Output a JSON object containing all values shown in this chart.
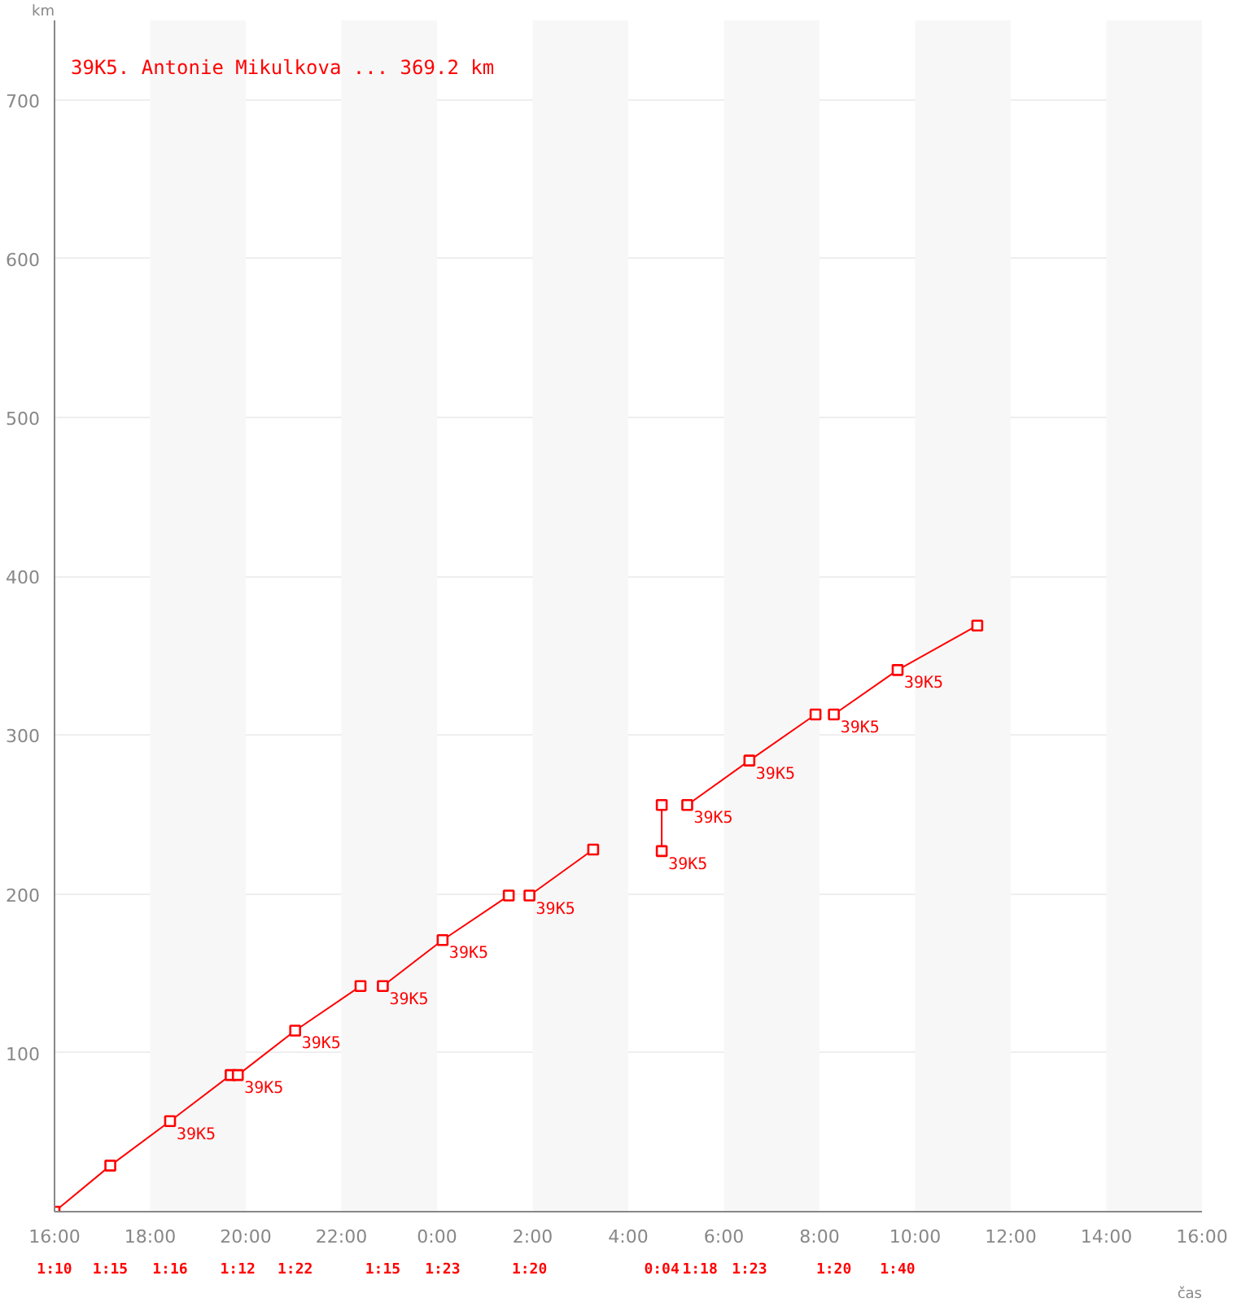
{
  "chart_data": {
    "type": "line",
    "xlabel": "čas",
    "ylabel": "km",
    "xlim": [
      "2000-01-01T16:00",
      "2000-01-02T16:00"
    ],
    "ylim": [
      0,
      750
    ],
    "xticks": [
      {
        "value": "2000-01-01T16:00",
        "label": "16:00"
      },
      {
        "value": "2000-01-01T18:00",
        "label": "18:00"
      },
      {
        "value": "2000-01-01T20:00",
        "label": "20:00"
      },
      {
        "value": "2000-01-01T22:00",
        "label": "22:00"
      },
      {
        "value": "2000-01-02T00:00",
        "label": "0:00"
      },
      {
        "value": "2000-01-02T02:00",
        "label": "2:00"
      },
      {
        "value": "2000-01-02T04:00",
        "label": "4:00"
      },
      {
        "value": "2000-01-02T06:00",
        "label": "6:00"
      },
      {
        "value": "2000-01-02T08:00",
        "label": "8:00"
      },
      {
        "value": "2000-01-02T10:00",
        "label": "10:00"
      },
      {
        "value": "2000-01-02T12:00",
        "label": "12:00"
      },
      {
        "value": "2000-01-02T14:00",
        "label": "14:00"
      },
      {
        "value": "2000-01-02T16:00",
        "label": "16:00"
      }
    ],
    "yticks": [
      100,
      200,
      300,
      400,
      500,
      600,
      700
    ],
    "grid": "y",
    "legend": "top left",
    "marker": "square",
    "line_style": "solid",
    "series": [
      {
        "name": "39K5. Antonie Mikulkova ... 369.2 km",
        "color": "#ff0000",
        "x": [
          "2000-01-01T16:00",
          "2000-01-01T17:10",
          "2000-01-01T18:25",
          "2000-01-01T19:41",
          "2000-01-01T19:50",
          "2000-01-01T21:02",
          "2000-01-01T22:24",
          "2000-01-01T22:36",
          "2000-01-01T22:52",
          "2000-01-02T00:07",
          "2000-01-02T01:30",
          "2000-01-02T01:42",
          "2000-01-02T01:56",
          "2000-01-02T03:16",
          "2000-01-02T04:00",
          "2000-01-02T04:42",
          "2000-01-02T04:42",
          "2000-01-02T05:00",
          "2000-01-02T05:14",
          "2000-01-02T06:32",
          "2000-01-02T07:55",
          "2000-01-02T08:06",
          "2000-01-02T08:18",
          "2000-01-02T09:38",
          "2000-01-02T11:18"
        ],
        "values": [
          0,
          29,
          57,
          86,
          86,
          114,
          142,
          null,
          142,
          171,
          199,
          null,
          199,
          228,
          null,
          256,
          227,
          null,
          256,
          284,
          313,
          null,
          313,
          341,
          369
        ]
      }
    ],
    "bands": [
      {
        "axis": "x",
        "from": "2000-01-01T18:00",
        "to": "2000-01-01T20:00",
        "color": "#f7f7f7"
      },
      {
        "axis": "x",
        "from": "2000-01-01T22:00",
        "to": "2000-01-02T00:00",
        "color": "#f7f7f7"
      },
      {
        "axis": "x",
        "from": "2000-01-02T02:00",
        "to": "2000-01-02T04:00",
        "color": "#f7f7f7"
      },
      {
        "axis": "x",
        "from": "2000-01-02T06:00",
        "to": "2000-01-02T08:00",
        "color": "#f7f7f7"
      },
      {
        "axis": "x",
        "from": "2000-01-02T10:00",
        "to": "2000-01-02T12:00",
        "color": "#f7f7f7"
      },
      {
        "axis": "x",
        "from": "2000-01-02T14:00",
        "to": "2000-01-02T16:00",
        "color": "#f7f7f7"
      }
    ],
    "annotations": [
      {
        "text": "39K5",
        "x": "2000-01-01T18:25",
        "y": 57
      },
      {
        "text": "39K5",
        "x": "2000-01-01T19:50",
        "y": 86
      },
      {
        "text": "39K5",
        "x": "2000-01-01T21:02",
        "y": 114
      },
      {
        "text": "39K5",
        "x": "2000-01-01T22:52",
        "y": 142
      },
      {
        "text": "39K5",
        "x": "2000-01-02T00:07",
        "y": 171
      },
      {
        "text": "39K5",
        "x": "2000-01-02T01:56",
        "y": 199
      },
      {
        "text": "39K5",
        "x": "2000-01-02T04:42",
        "y": 227
      },
      {
        "text": "39K5",
        "x": "2000-01-02T05:14",
        "y": 256
      },
      {
        "text": "39K5",
        "x": "2000-01-02T06:32",
        "y": 284
      },
      {
        "text": "39K5",
        "x": "2000-01-02T08:18",
        "y": 313
      },
      {
        "text": "39K5",
        "x": "2000-01-02T09:38",
        "y": 341
      },
      "1:10",
      "1:15",
      "1:16",
      "1:12",
      "1:22",
      "1:15",
      "1:23",
      "1:20",
      "0:04",
      "1:18",
      "1:23",
      "1:20",
      "1:40"
    ]
  }
}
